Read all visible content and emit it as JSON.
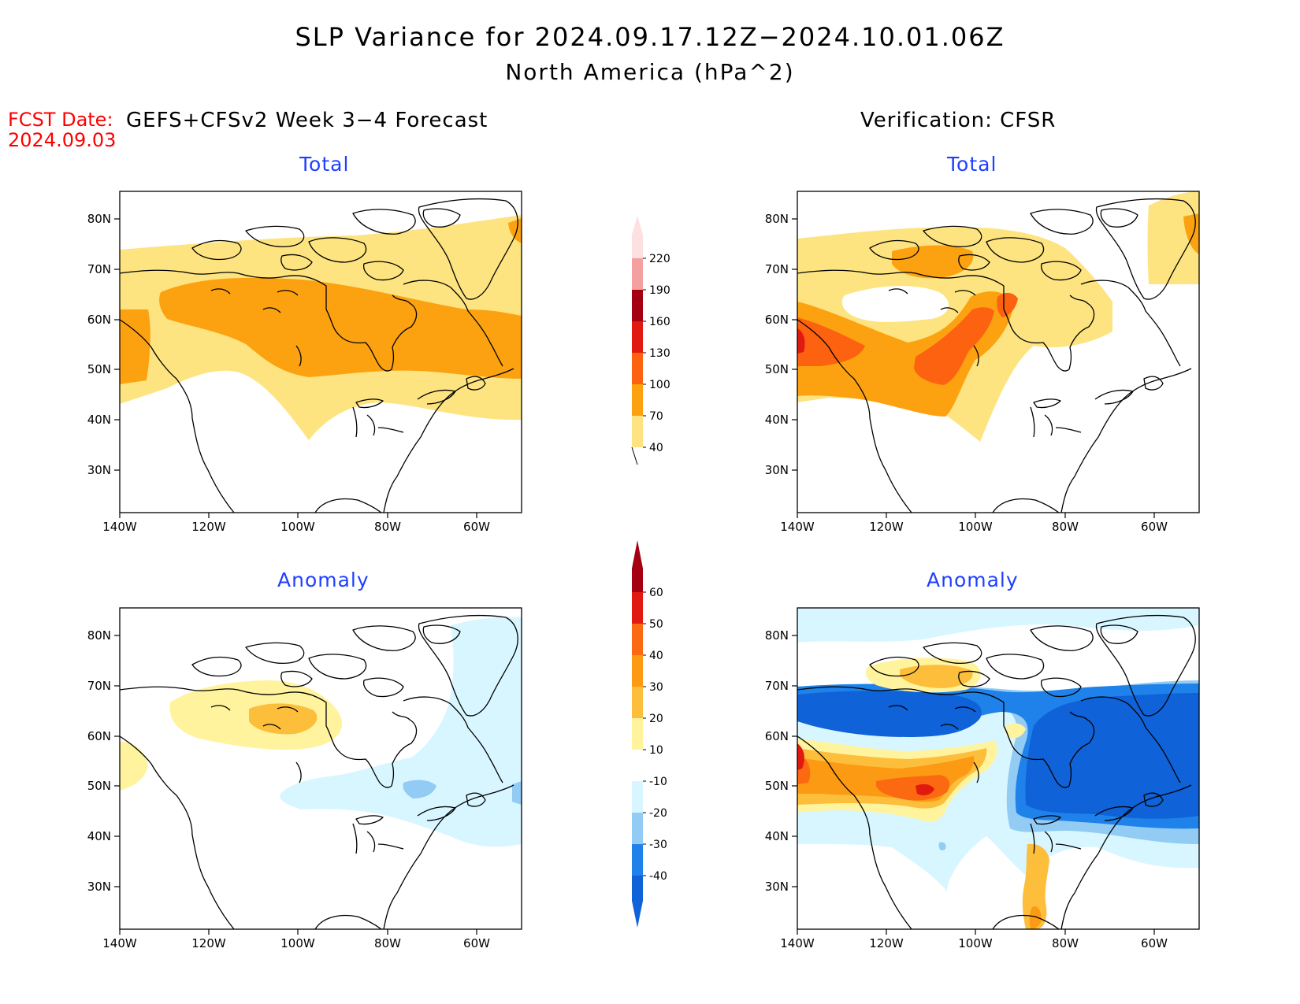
{
  "title": "SLP Variance for 2024.09.17.12Z−2024.10.01.06Z",
  "subtitle": "North America (hPa^2)",
  "fcst_date_label": "FCST Date:",
  "fcst_date_value": "2024.09.03",
  "left_heading": "GEFS+CFSv2 Week 3−4 Forecast",
  "right_heading": "Verification: CFSR",
  "panels": [
    {
      "id": "forecast-total",
      "label": "Total"
    },
    {
      "id": "verification-total",
      "label": "Total"
    },
    {
      "id": "forecast-anomaly",
      "label": "Anomaly"
    },
    {
      "id": "verification-anomaly",
      "label": "Anomaly"
    }
  ],
  "lat_ticks": [
    "80N",
    "70N",
    "60N",
    "50N",
    "40N",
    "30N"
  ],
  "lon_ticks": [
    "140W",
    "120W",
    "100W",
    "80W",
    "60W"
  ],
  "total_colorbar": {
    "levels": [
      "40",
      "70",
      "100",
      "130",
      "160",
      "190",
      "220"
    ],
    "colors": [
      "#fde480",
      "#fca210",
      "#fd6210",
      "#e01a10",
      "#a50011",
      "#f4a0a0",
      "#fde0e0"
    ]
  },
  "anomaly_colorbar": {
    "levels": [
      "-40",
      "-30",
      "-20",
      "-10",
      "10",
      "20",
      "30",
      "40",
      "50",
      "60"
    ],
    "colors": [
      "#0f62d8",
      "#1e82ea",
      "#92cbf4",
      "#d8f6ff",
      "#ffffff",
      "#fff39e",
      "#fdbe3c",
      "#fc9a14",
      "#fb6a10",
      "#e01a10",
      "#a50011"
    ]
  },
  "colors": {
    "title_red": "#ff0000",
    "subtitle_blue": "#1f3fff",
    "coastline": "#000000"
  }
}
